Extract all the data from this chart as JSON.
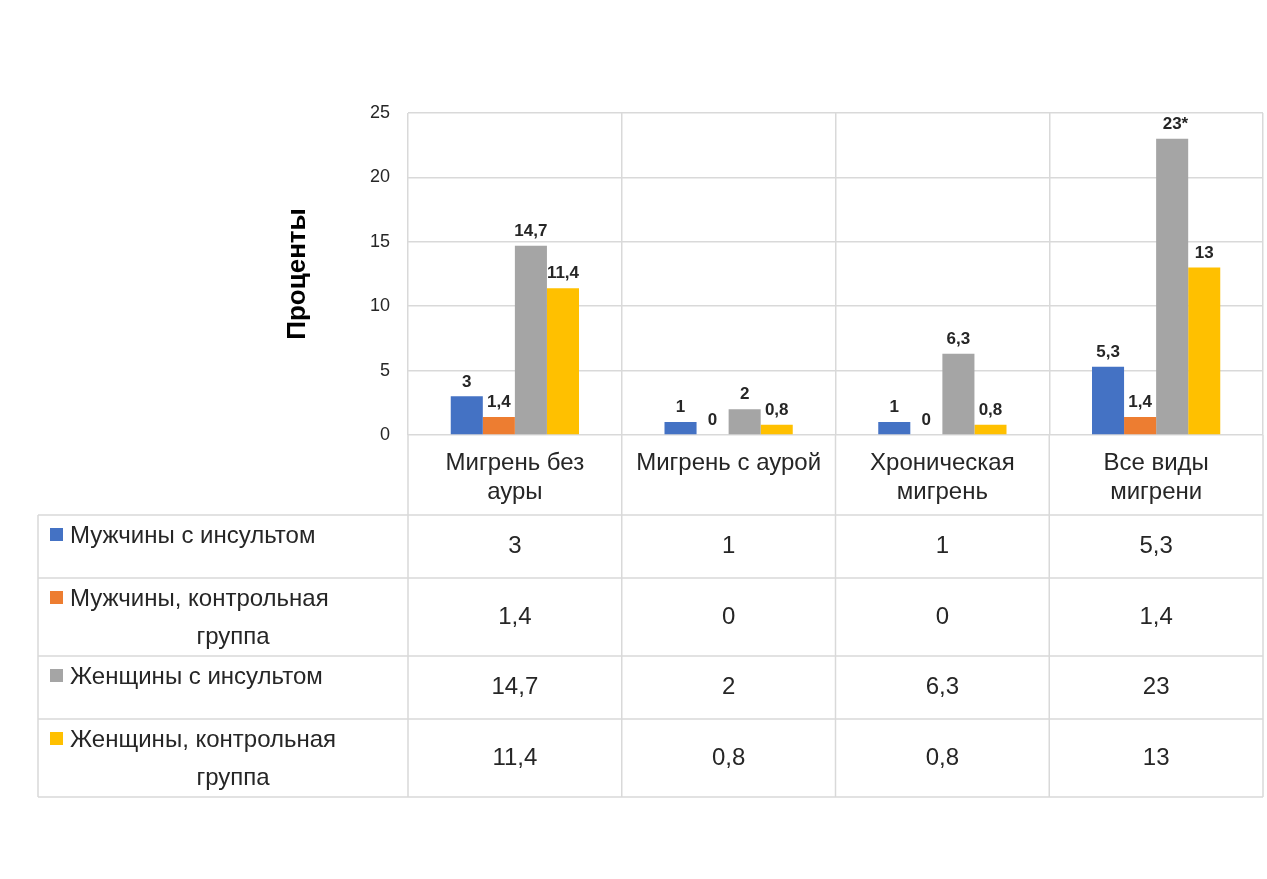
{
  "chart_data": {
    "type": "bar",
    "ylabel": "Проценты",
    "categories": [
      "Мигрень без ауры",
      "Мигрень с аурой",
      "Хроническая мигрень",
      "Все виды мигрени"
    ],
    "series": [
      {
        "name": "Мужчины с инсультом",
        "color": "#4472c4",
        "values": [
          3,
          1,
          1,
          5.3
        ],
        "value_labels": [
          "3",
          "1",
          "1",
          "5,3"
        ]
      },
      {
        "name": "Мужчины, контрольная группа",
        "color": "#ed7d31",
        "values": [
          1.4,
          0,
          0,
          1.4
        ],
        "value_labels": [
          "1,4",
          "0",
          "0",
          "1,4"
        ]
      },
      {
        "name": "Женщины с инсультом",
        "color": "#a5a5a5",
        "values": [
          14.7,
          2,
          6.3,
          23
        ],
        "value_labels": [
          "14,7",
          "2",
          "6,3",
          "23"
        ]
      },
      {
        "name": "Женщины, контрольная группа",
        "color": "#ffc000",
        "values": [
          11.4,
          0.8,
          0.8,
          13
        ],
        "value_labels": [
          "11,4",
          "0,8",
          "0,8",
          "13"
        ]
      }
    ],
    "annotations": [
      {
        "text": "*",
        "x": "Все виды мигрени",
        "y": 23
      }
    ],
    "ylim": [
      0,
      25
    ],
    "yticks": [
      0,
      5,
      10,
      15,
      20,
      25
    ],
    "grid": true,
    "legend": "bottom"
  }
}
